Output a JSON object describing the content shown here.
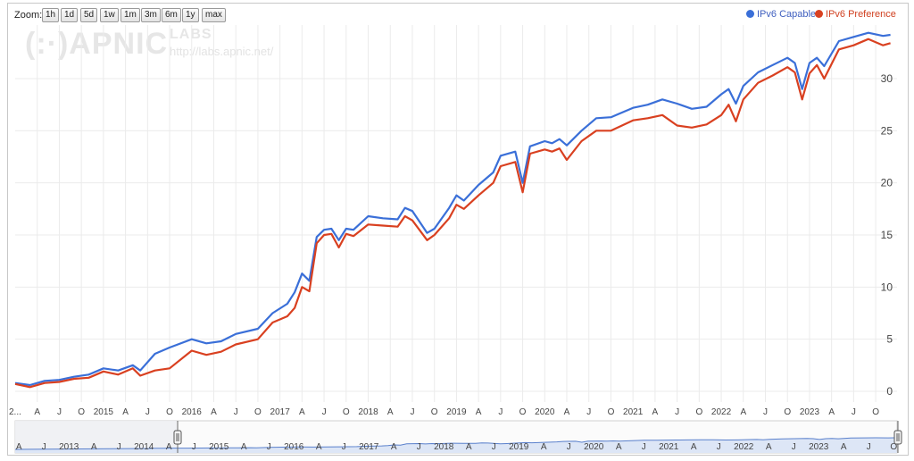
{
  "toolbar": {
    "zoom_label": "Zoom:",
    "zoom_buttons": [
      "1h",
      "1d",
      "5d",
      "1w",
      "1m",
      "3m",
      "6m",
      "1y",
      "max"
    ]
  },
  "legend": {
    "items": [
      {
        "name": "IPv6 Capable",
        "color": "#3a6fd8"
      },
      {
        "name": "IPv6 Preference",
        "color": "#d94020"
      }
    ]
  },
  "watermark": {
    "logo": "(:·)APNIC",
    "labs": "LABS",
    "url": "http://labs.apnic.net/"
  },
  "colors": {
    "capable": "#3a6fd8",
    "preference": "#d94020",
    "grid": "#ebebeb",
    "navigator_fill": "#dde6f6"
  },
  "chart_data": {
    "type": "line",
    "title": "",
    "xlabel": "",
    "ylabel": "",
    "x_range": [
      "2014-01",
      "2023-12"
    ],
    "ylim": [
      0,
      35
    ],
    "y_ticks": [
      0,
      5,
      10,
      15,
      20,
      25,
      30
    ],
    "x_tick_labels": [
      "2...",
      "A",
      "J",
      "O",
      "2015",
      "A",
      "J",
      "O",
      "2016",
      "A",
      "J",
      "O",
      "2017",
      "A",
      "J",
      "O",
      "2018",
      "A",
      "J",
      "O",
      "2019",
      "A",
      "J",
      "O",
      "2020",
      "A",
      "J",
      "O",
      "2021",
      "A",
      "J",
      "O",
      "2022",
      "A",
      "J",
      "O",
      "2023",
      "A",
      "J",
      "O"
    ],
    "grid": true,
    "legend_position": "top-right",
    "navigator": {
      "labels": [
        "A",
        "J",
        "2013",
        "A",
        "J",
        "2014",
        "A",
        "J",
        "2015",
        "A",
        "J",
        "2016",
        "A",
        "J",
        "2017",
        "A",
        "J",
        "2018",
        "A",
        "J",
        "2019",
        "A",
        "J",
        "2020",
        "A",
        "J",
        "2021",
        "A",
        "J",
        "2022",
        "A",
        "J",
        "2023",
        "A",
        "J",
        "O"
      ],
      "selected_range": [
        "2014-01",
        "2023-12"
      ]
    },
    "series": [
      {
        "name": "IPv6 Capable",
        "points": [
          [
            "2014-01",
            0.8
          ],
          [
            "2014-03",
            0.6
          ],
          [
            "2014-05",
            1.0
          ],
          [
            "2014-07",
            1.1
          ],
          [
            "2014-09",
            1.4
          ],
          [
            "2014-11",
            1.6
          ],
          [
            "2015-01",
            2.2
          ],
          [
            "2015-03",
            2.0
          ],
          [
            "2015-05",
            2.5
          ],
          [
            "2015-06",
            2.0
          ],
          [
            "2015-08",
            3.6
          ],
          [
            "2015-10",
            4.2
          ],
          [
            "2016-01",
            5.0
          ],
          [
            "2016-03",
            4.6
          ],
          [
            "2016-05",
            4.8
          ],
          [
            "2016-07",
            5.5
          ],
          [
            "2016-10",
            6.0
          ],
          [
            "2016-12",
            7.5
          ],
          [
            "2017-02",
            8.4
          ],
          [
            "2017-03",
            9.5
          ],
          [
            "2017-04",
            11.3
          ],
          [
            "2017-05",
            10.6
          ],
          [
            "2017-06",
            14.8
          ],
          [
            "2017-07",
            15.5
          ],
          [
            "2017-08",
            15.6
          ],
          [
            "2017-09",
            14.5
          ],
          [
            "2017-10",
            15.6
          ],
          [
            "2017-11",
            15.5
          ],
          [
            "2018-01",
            16.8
          ],
          [
            "2018-03",
            16.6
          ],
          [
            "2018-05",
            16.5
          ],
          [
            "2018-06",
            17.6
          ],
          [
            "2018-07",
            17.3
          ],
          [
            "2018-09",
            15.2
          ],
          [
            "2018-10",
            15.6
          ],
          [
            "2018-12",
            17.6
          ],
          [
            "2019-01",
            18.8
          ],
          [
            "2019-02",
            18.3
          ],
          [
            "2019-04",
            19.8
          ],
          [
            "2019-06",
            21.0
          ],
          [
            "2019-07",
            22.6
          ],
          [
            "2019-09",
            23.0
          ],
          [
            "2019-10",
            20.0
          ],
          [
            "2019-11",
            23.5
          ],
          [
            "2020-01",
            24.0
          ],
          [
            "2020-02",
            23.8
          ],
          [
            "2020-03",
            24.2
          ],
          [
            "2020-04",
            23.6
          ],
          [
            "2020-06",
            25.0
          ],
          [
            "2020-08",
            26.2
          ],
          [
            "2020-10",
            26.3
          ],
          [
            "2021-01",
            27.2
          ],
          [
            "2021-03",
            27.5
          ],
          [
            "2021-05",
            28.0
          ],
          [
            "2021-07",
            27.6
          ],
          [
            "2021-09",
            27.1
          ],
          [
            "2021-11",
            27.3
          ],
          [
            "2022-01",
            28.5
          ],
          [
            "2022-02",
            29.0
          ],
          [
            "2022-03",
            27.6
          ],
          [
            "2022-04",
            29.3
          ],
          [
            "2022-06",
            30.6
          ],
          [
            "2022-08",
            31.3
          ],
          [
            "2022-10",
            32.0
          ],
          [
            "2022-11",
            31.5
          ],
          [
            "2022-12",
            29.0
          ],
          [
            "2023-01",
            31.5
          ],
          [
            "2023-02",
            32.0
          ],
          [
            "2023-03",
            31.2
          ],
          [
            "2023-05",
            33.6
          ],
          [
            "2023-07",
            34.0
          ],
          [
            "2023-09",
            34.4
          ],
          [
            "2023-11",
            34.1
          ],
          [
            "2023-12",
            34.2
          ]
        ]
      },
      {
        "name": "IPv6 Preference",
        "points": [
          [
            "2014-01",
            0.7
          ],
          [
            "2014-03",
            0.4
          ],
          [
            "2014-05",
            0.8
          ],
          [
            "2014-07",
            0.9
          ],
          [
            "2014-09",
            1.2
          ],
          [
            "2014-11",
            1.3
          ],
          [
            "2015-01",
            1.9
          ],
          [
            "2015-03",
            1.6
          ],
          [
            "2015-05",
            2.2
          ],
          [
            "2015-06",
            1.5
          ],
          [
            "2015-08",
            2.0
          ],
          [
            "2015-10",
            2.2
          ],
          [
            "2016-01",
            3.9
          ],
          [
            "2016-03",
            3.5
          ],
          [
            "2016-05",
            3.8
          ],
          [
            "2016-07",
            4.5
          ],
          [
            "2016-10",
            5.0
          ],
          [
            "2016-12",
            6.6
          ],
          [
            "2017-02",
            7.2
          ],
          [
            "2017-03",
            8.0
          ],
          [
            "2017-04",
            10.0
          ],
          [
            "2017-05",
            9.6
          ],
          [
            "2017-06",
            14.2
          ],
          [
            "2017-07",
            15.0
          ],
          [
            "2017-08",
            15.1
          ],
          [
            "2017-09",
            13.8
          ],
          [
            "2017-10",
            15.1
          ],
          [
            "2017-11",
            14.9
          ],
          [
            "2018-01",
            16.0
          ],
          [
            "2018-03",
            15.9
          ],
          [
            "2018-05",
            15.8
          ],
          [
            "2018-06",
            16.8
          ],
          [
            "2018-07",
            16.4
          ],
          [
            "2018-09",
            14.5
          ],
          [
            "2018-10",
            15.0
          ],
          [
            "2018-12",
            16.6
          ],
          [
            "2019-01",
            17.9
          ],
          [
            "2019-02",
            17.5
          ],
          [
            "2019-04",
            18.8
          ],
          [
            "2019-06",
            20.0
          ],
          [
            "2019-07",
            21.6
          ],
          [
            "2019-09",
            22.0
          ],
          [
            "2019-10",
            19.1
          ],
          [
            "2019-11",
            22.8
          ],
          [
            "2020-01",
            23.2
          ],
          [
            "2020-02",
            23.0
          ],
          [
            "2020-03",
            23.3
          ],
          [
            "2020-04",
            22.2
          ],
          [
            "2020-06",
            24.0
          ],
          [
            "2020-08",
            25.0
          ],
          [
            "2020-10",
            25.0
          ],
          [
            "2021-01",
            26.0
          ],
          [
            "2021-03",
            26.2
          ],
          [
            "2021-05",
            26.5
          ],
          [
            "2021-07",
            25.5
          ],
          [
            "2021-09",
            25.3
          ],
          [
            "2021-11",
            25.6
          ],
          [
            "2022-01",
            26.5
          ],
          [
            "2022-02",
            27.5
          ],
          [
            "2022-03",
            25.9
          ],
          [
            "2022-04",
            28.0
          ],
          [
            "2022-06",
            29.6
          ],
          [
            "2022-08",
            30.3
          ],
          [
            "2022-10",
            31.1
          ],
          [
            "2022-11",
            30.6
          ],
          [
            "2022-12",
            28.0
          ],
          [
            "2023-01",
            30.5
          ],
          [
            "2023-02",
            31.3
          ],
          [
            "2023-03",
            30.0
          ],
          [
            "2023-05",
            32.8
          ],
          [
            "2023-07",
            33.2
          ],
          [
            "2023-09",
            33.8
          ],
          [
            "2023-11",
            33.2
          ],
          [
            "2023-12",
            33.4
          ]
        ]
      }
    ]
  }
}
